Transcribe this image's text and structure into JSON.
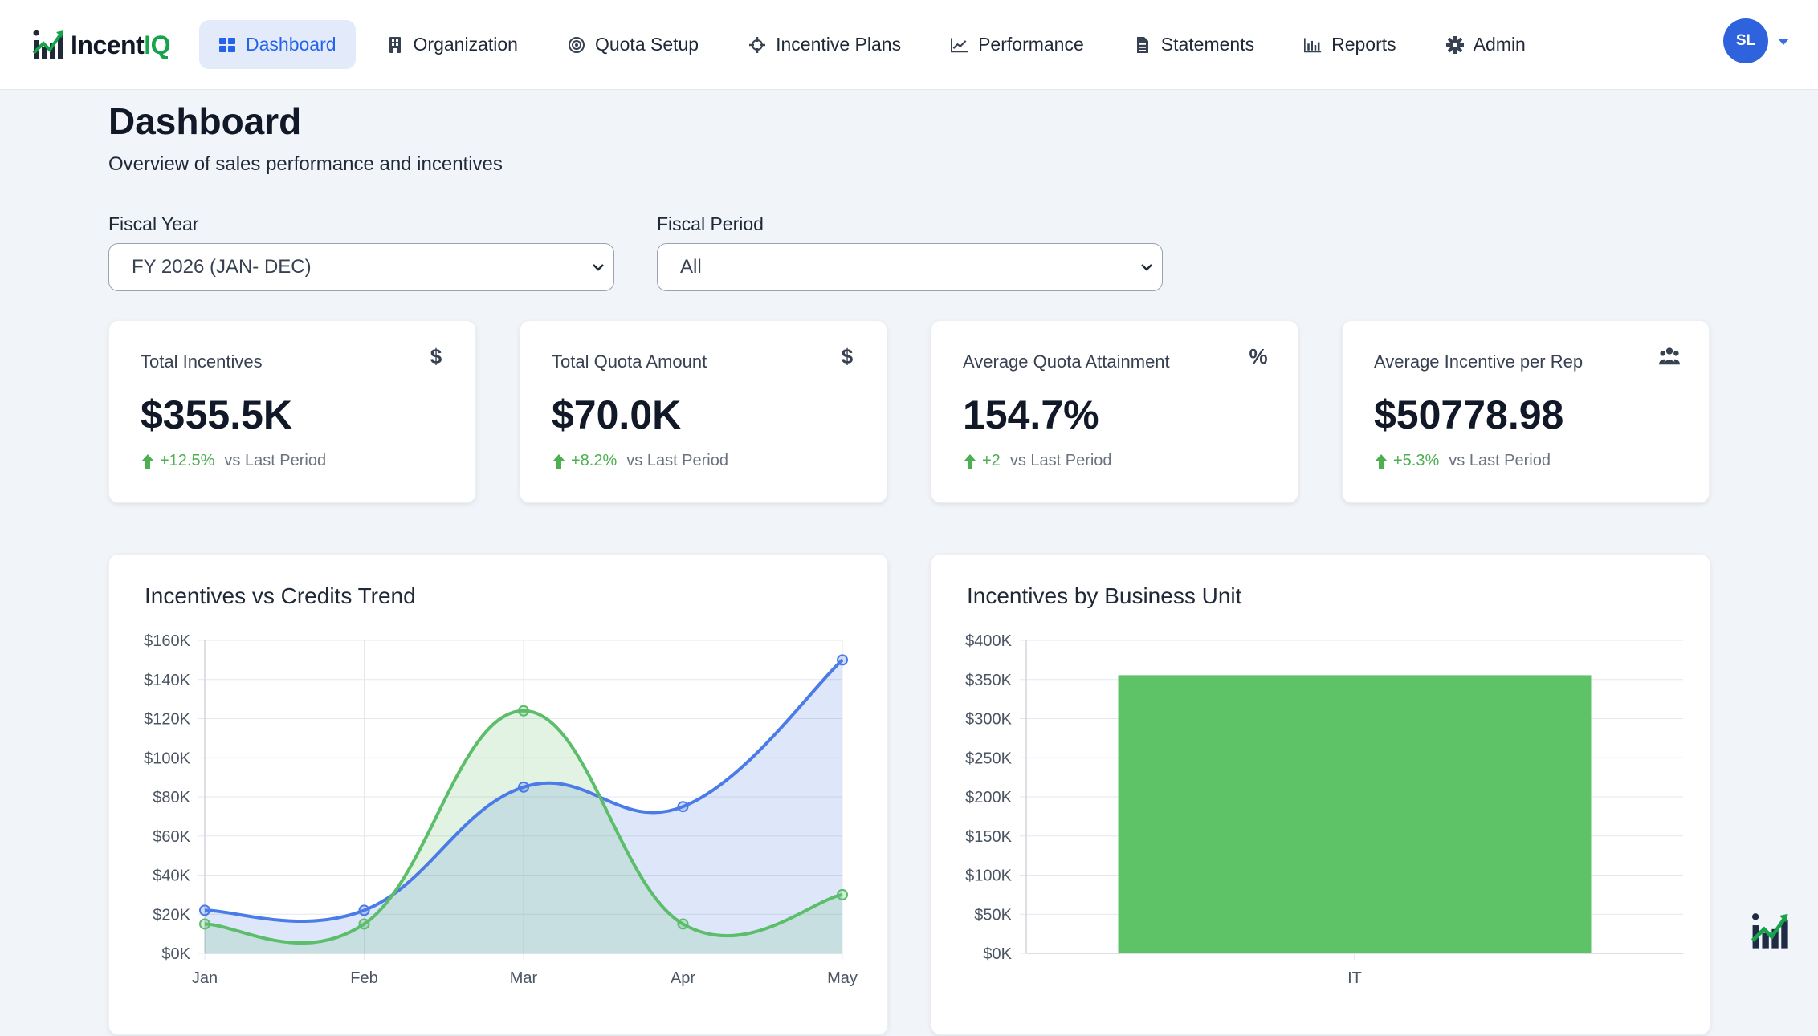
{
  "brand": {
    "name_main": "Incent",
    "name_accent": "IQ"
  },
  "nav": {
    "items": [
      {
        "label": "Dashboard",
        "icon": "grid-icon",
        "active": true
      },
      {
        "label": "Organization",
        "icon": "building-icon"
      },
      {
        "label": "Quota Setup",
        "icon": "target-icon"
      },
      {
        "label": "Incentive Plans",
        "icon": "crosshair-icon"
      },
      {
        "label": "Performance",
        "icon": "line-chart-icon"
      },
      {
        "label": "Statements",
        "icon": "document-icon"
      },
      {
        "label": "Reports",
        "icon": "bar-chart-icon"
      },
      {
        "label": "Admin",
        "icon": "gear-icon"
      }
    ]
  },
  "user": {
    "initials": "SL"
  },
  "header": {
    "title": "Dashboard",
    "subtitle": "Overview of sales performance and incentives"
  },
  "filters": {
    "fiscal_year": {
      "label": "Fiscal Year",
      "value": "FY 2026 (JAN- DEC)"
    },
    "fiscal_period": {
      "label": "Fiscal Period",
      "value": "All"
    }
  },
  "kpis": [
    {
      "label": "Total Incentives",
      "value": "$355.5K",
      "delta": "+12.5%",
      "vs": "vs Last Period",
      "icon": "dollar-icon",
      "glyph": "$"
    },
    {
      "label": "Total Quota Amount",
      "value": "$70.0K",
      "delta": "+8.2%",
      "vs": "vs Last Period",
      "icon": "dollar-icon",
      "glyph": "$"
    },
    {
      "label": "Average Quota Attainment",
      "value": "154.7%",
      "delta": "+2",
      "vs": "vs Last Period",
      "icon": "percent-icon",
      "glyph": "%"
    },
    {
      "label": "Average Incentive per Rep",
      "value": "$50778.98",
      "delta": "+5.3%",
      "vs": "vs Last Period",
      "icon": "users-icon",
      "glyph": ""
    }
  ],
  "colors": {
    "blue": "#4a7be6",
    "green": "#5cbd6a",
    "bar": "#5ec266",
    "trend_up": "#4caf50"
  },
  "chart_data": [
    {
      "type": "area",
      "title": "Incentives vs Credits Trend",
      "categories": [
        "Jan",
        "Feb",
        "Mar",
        "Apr",
        "May"
      ],
      "ylim": [
        0,
        160000
      ],
      "yticks": [
        "$0K",
        "$20K",
        "$40K",
        "$60K",
        "$80K",
        "$100K",
        "$120K",
        "$140K",
        "$160K"
      ],
      "grid": true,
      "series": [
        {
          "color": "#4a7be6",
          "values": [
            22000,
            22000,
            85000,
            75000,
            150000
          ]
        },
        {
          "color": "#5cbd6a",
          "values": [
            15000,
            15000,
            124000,
            15000,
            30000
          ]
        }
      ]
    },
    {
      "type": "bar",
      "title": "Incentives by Business Unit",
      "categories": [
        "IT"
      ],
      "values": [
        355500
      ],
      "ylim": [
        0,
        400000
      ],
      "yticks": [
        "$0K",
        "$50K",
        "$100K",
        "$150K",
        "$200K",
        "$250K",
        "$300K",
        "$350K",
        "$400K"
      ],
      "grid": true
    }
  ]
}
